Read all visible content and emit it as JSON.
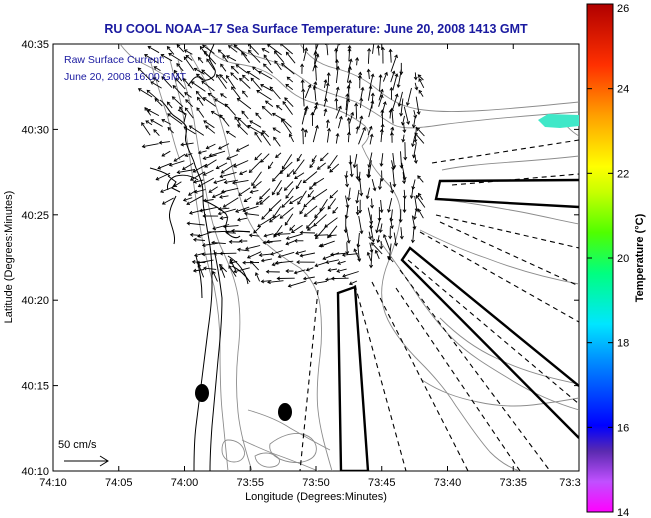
{
  "title": "RU COOL   NOAA–17  Sea Surface Temperature:  June 20, 2008 1413 GMT",
  "inset": {
    "line1": "Raw Surface Current:",
    "line2": "June 20, 2008 16:00 GMT"
  },
  "scale_label": "50 cm/s",
  "x_axis": {
    "label": "Longitude (Degrees:Minutes)",
    "ticks": [
      "74:10",
      "74:05",
      "74:00",
      "73:55",
      "73:50",
      "73:45",
      "73:40",
      "73:35",
      "73:3"
    ]
  },
  "y_axis": {
    "label": "Latitude (Degrees:Minutes)",
    "ticks": [
      "40:10",
      "40:15",
      "40:20",
      "40:25",
      "40:30",
      "40:35"
    ]
  },
  "colorbar": {
    "label": "Temperature (°C)",
    "ticks": [
      "14",
      "16",
      "18",
      "20",
      "22",
      "24",
      "26"
    ],
    "min": 14,
    "max": 26
  },
  "colors": {
    "title": "#1a1aa0",
    "coast": "#000000",
    "bathymetry": "#8a8a8a",
    "sst_patch": "#3fe8c8"
  }
}
